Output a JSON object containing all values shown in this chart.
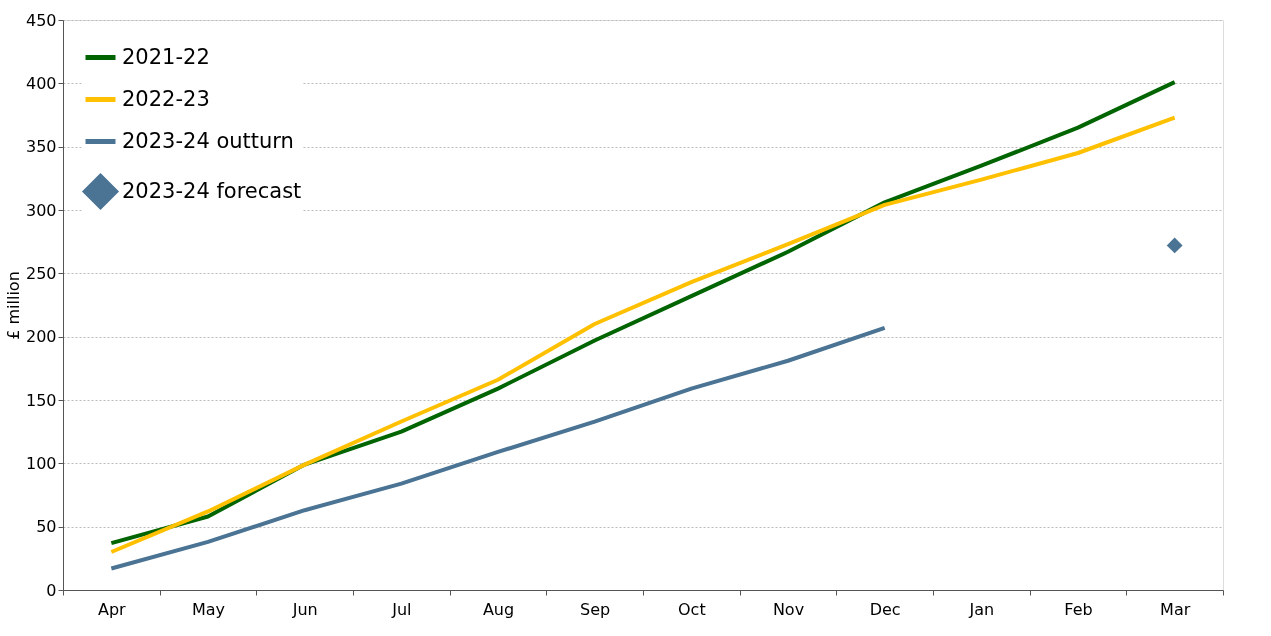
{
  "chart_data": {
    "type": "line",
    "ylabel": "£ million",
    "categories": [
      "Apr",
      "May",
      "Jun",
      "Jul",
      "Aug",
      "Sep",
      "Oct",
      "Nov",
      "Dec",
      "Jan",
      "Feb",
      "Mar"
    ],
    "series": [
      {
        "name": "2021-22",
        "color": "#006400",
        "values": [
          37,
          58,
          99,
          125,
          159,
          197,
          232,
          267,
          306,
          335,
          365,
          401
        ]
      },
      {
        "name": "2022-23",
        "color": "#ffc000",
        "values": [
          30,
          62,
          99,
          133,
          166,
          210,
          243,
          273,
          304,
          324,
          345,
          373
        ]
      },
      {
        "name": "2023-24 outturn",
        "color": "#4a7394",
        "values": [
          17,
          38,
          63,
          84,
          109,
          133,
          159,
          181,
          207,
          null,
          null,
          null
        ]
      },
      {
        "name": "2023-24 forecast",
        "color": "#4a7394",
        "type": "scatter",
        "marker": "diamond",
        "values": [
          null,
          null,
          null,
          null,
          null,
          null,
          null,
          null,
          null,
          null,
          null,
          272
        ]
      }
    ],
    "ylim": [
      0,
      450
    ],
    "yticks": [
      0,
      50,
      100,
      150,
      200,
      250,
      300,
      350,
      400,
      450
    ],
    "grid": "y",
    "legend": "top left",
    "line_style": "solid"
  }
}
